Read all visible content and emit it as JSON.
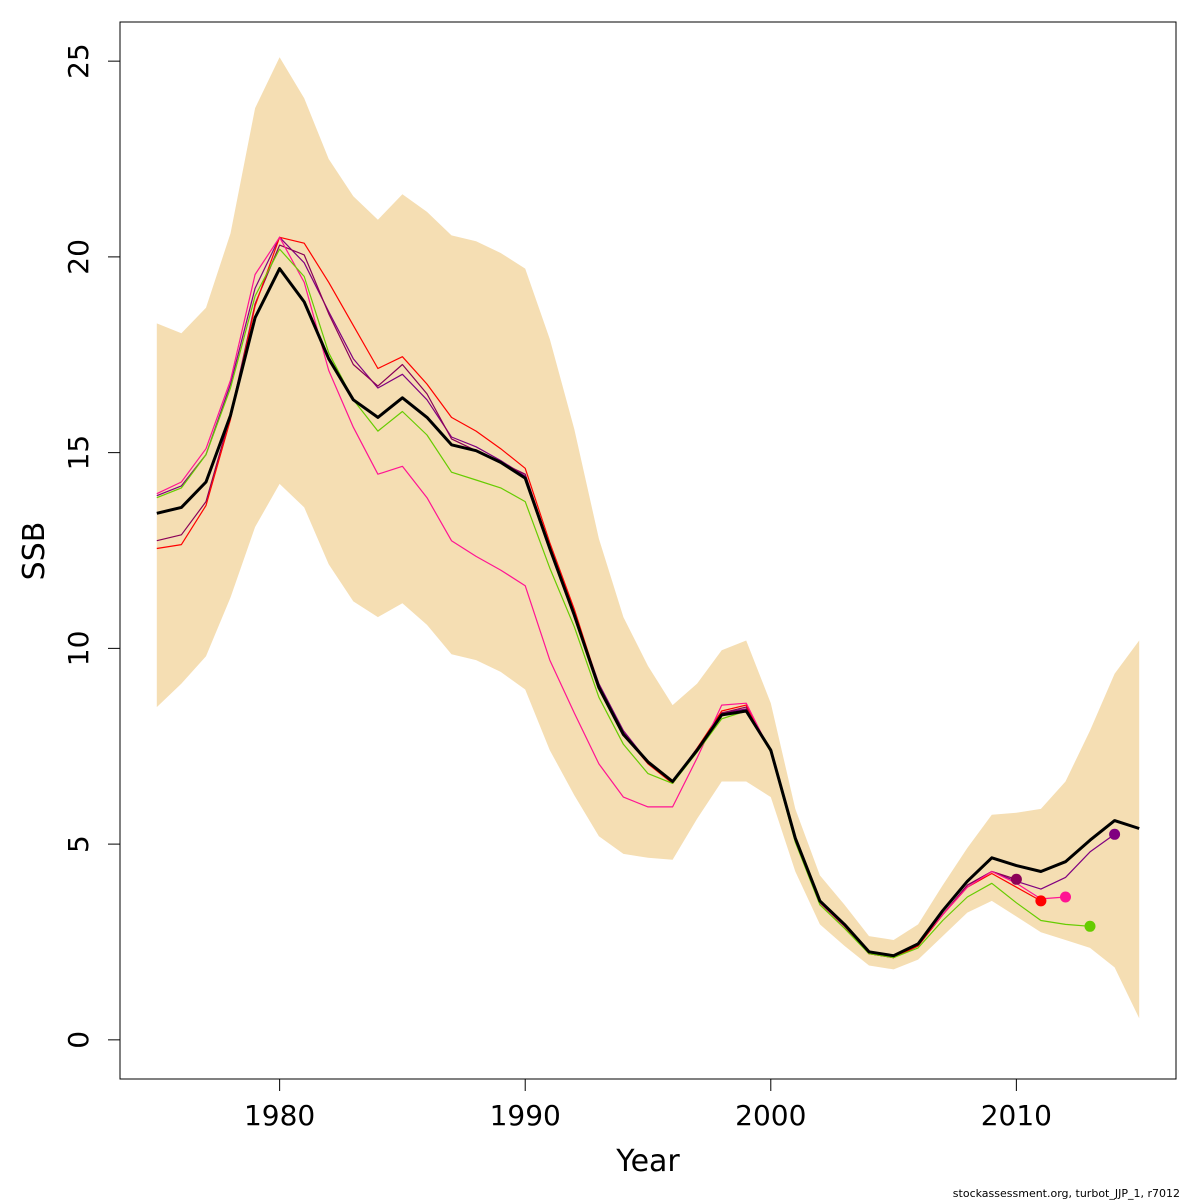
{
  "chart_data": {
    "type": "line",
    "title": "",
    "xlabel": "Year",
    "ylabel": "SSB",
    "xlim": [
      1973.5,
      2016.5
    ],
    "ylim": [
      -1,
      26
    ],
    "x_ticks": [
      1980,
      1990,
      2000,
      2010
    ],
    "y_ticks": [
      0,
      5,
      10,
      15,
      20,
      25
    ],
    "grid": false,
    "legend": "none",
    "credit": "stockassessment.org, turbot_JJP_1, r7012",
    "band": {
      "color": "#f5deb3",
      "x": [
        1975,
        1976,
        1977,
        1978,
        1979,
        1980,
        1981,
        1982,
        1983,
        1984,
        1985,
        1986,
        1987,
        1988,
        1989,
        1990,
        1991,
        1992,
        1993,
        1994,
        1995,
        1996,
        1997,
        1998,
        1999,
        2000,
        2001,
        2002,
        2003,
        2004,
        2005,
        2006,
        2007,
        2008,
        2009,
        2010,
        2011,
        2012,
        2013,
        2014,
        2015
      ],
      "upper": [
        18.3,
        18.05,
        18.7,
        20.6,
        23.8,
        25.1,
        24.05,
        22.5,
        21.55,
        20.95,
        21.6,
        21.15,
        20.55,
        20.4,
        20.1,
        19.7,
        17.9,
        15.6,
        12.8,
        10.8,
        9.55,
        8.55,
        9.1,
        9.95,
        10.2,
        8.6,
        5.9,
        4.2,
        3.45,
        2.65,
        2.55,
        2.95,
        3.95,
        4.9,
        5.75,
        5.8,
        5.9,
        6.6,
        7.9,
        9.35,
        10.2
      ],
      "lower": [
        8.5,
        9.1,
        9.8,
        11.3,
        13.1,
        14.2,
        13.6,
        12.15,
        11.2,
        10.8,
        11.15,
        10.6,
        9.85,
        9.7,
        9.4,
        8.95,
        7.4,
        6.25,
        5.2,
        4.75,
        4.65,
        4.6,
        5.65,
        6.6,
        6.6,
        6.2,
        4.3,
        2.95,
        2.4,
        1.9,
        1.8,
        2.05,
        2.65,
        3.25,
        3.55,
        3.15,
        2.75,
        2.55,
        2.35,
        1.85,
        0.55
      ]
    },
    "series": [
      {
        "color": "#000000",
        "main": true,
        "x": [
          1975,
          1976,
          1977,
          1978,
          1979,
          1980,
          1981,
          1982,
          1983,
          1984,
          1985,
          1986,
          1987,
          1988,
          1989,
          1990,
          1991,
          1992,
          1993,
          1994,
          1995,
          1996,
          1997,
          1998,
          1999,
          2000,
          2001,
          2002,
          2003,
          2004,
          2005,
          2006,
          2007,
          2008,
          2009,
          2010,
          2011,
          2012,
          2013,
          2014,
          2015
        ],
        "y": [
          13.45,
          13.6,
          14.25,
          15.95,
          18.45,
          19.7,
          18.85,
          17.4,
          16.35,
          15.9,
          16.4,
          15.9,
          15.2,
          15.05,
          14.75,
          14.35,
          12.55,
          10.85,
          9.0,
          7.8,
          7.1,
          6.6,
          7.4,
          8.3,
          8.4,
          7.4,
          5.15,
          3.55,
          2.95,
          2.25,
          2.15,
          2.45,
          3.3,
          4.05,
          4.65,
          4.45,
          4.3,
          4.55,
          5.1,
          5.6,
          5.4
        ],
        "end_marker": false
      },
      {
        "color": "#800080",
        "main": false,
        "x": [
          1975,
          1976,
          1977,
          1978,
          1979,
          1980,
          1981,
          1982,
          1983,
          1984,
          1985,
          1986,
          1987,
          1988,
          1989,
          1990,
          1991,
          1992,
          1993,
          1994,
          1995,
          1996,
          1997,
          1998,
          1999,
          2000,
          2001,
          2002,
          2003,
          2004,
          2005,
          2006,
          2007,
          2008,
          2009,
          2010,
          2011,
          2012,
          2013,
          2014
        ],
        "y": [
          13.9,
          14.15,
          14.95,
          16.75,
          19.2,
          20.5,
          19.85,
          18.6,
          17.4,
          16.65,
          17.0,
          16.35,
          15.4,
          15.15,
          14.8,
          14.4,
          12.55,
          10.9,
          9.1,
          7.9,
          7.1,
          6.6,
          7.45,
          8.35,
          8.45,
          7.4,
          5.15,
          3.55,
          2.95,
          2.25,
          2.15,
          2.45,
          3.2,
          3.95,
          4.3,
          4.05,
          3.85,
          4.15,
          4.8,
          5.25
        ],
        "end_marker": true
      },
      {
        "color": "#8b0057",
        "main": false,
        "x": [
          1975,
          1976,
          1977,
          1978,
          1979,
          1980,
          1981,
          1982,
          1983,
          1984,
          1985,
          1986,
          1987,
          1988,
          1989,
          1990,
          1991,
          1992,
          1993,
          1994,
          1995,
          1996,
          1997,
          1998,
          1999,
          2000,
          2001,
          2002,
          2003,
          2004,
          2005,
          2006,
          2007,
          2008,
          2009,
          2010
        ],
        "y": [
          12.75,
          12.9,
          13.75,
          15.95,
          18.8,
          20.3,
          20.05,
          18.55,
          17.25,
          16.7,
          17.25,
          16.5,
          15.35,
          15.05,
          14.75,
          14.45,
          12.6,
          10.95,
          9.05,
          7.85,
          7.1,
          6.55,
          7.45,
          8.35,
          8.5,
          7.35,
          5.1,
          3.5,
          2.9,
          2.2,
          2.1,
          2.4,
          3.2,
          3.95,
          4.3,
          4.1
        ],
        "end_marker": true
      },
      {
        "color": "#ff0000",
        "main": false,
        "x": [
          1975,
          1976,
          1977,
          1978,
          1979,
          1980,
          1981,
          1982,
          1983,
          1984,
          1985,
          1986,
          1987,
          1988,
          1989,
          1990,
          1991,
          1992,
          1993,
          1994,
          1995,
          1996,
          1997,
          1998,
          1999,
          2000,
          2001,
          2002,
          2003,
          2004,
          2005,
          2006,
          2007,
          2008,
          2009,
          2010,
          2011
        ],
        "y": [
          12.55,
          12.65,
          13.65,
          15.85,
          18.75,
          20.5,
          20.35,
          19.35,
          18.25,
          17.15,
          17.45,
          16.75,
          15.9,
          15.55,
          15.1,
          14.6,
          12.7,
          11.0,
          9.05,
          7.8,
          7.05,
          6.55,
          7.45,
          8.4,
          8.55,
          7.35,
          5.15,
          3.5,
          2.9,
          2.2,
          2.1,
          2.4,
          3.2,
          3.9,
          4.25,
          3.9,
          3.55
        ],
        "end_marker": true
      },
      {
        "color": "#ff1493",
        "main": false,
        "x": [
          1975,
          1976,
          1977,
          1978,
          1979,
          1980,
          1981,
          1982,
          1983,
          1984,
          1985,
          1986,
          1987,
          1988,
          1989,
          1990,
          1991,
          1992,
          1993,
          1994,
          1995,
          1996,
          1997,
          1998,
          1999,
          2000,
          2001,
          2002,
          2003,
          2004,
          2005,
          2006,
          2007,
          2008,
          2009,
          2010,
          2011,
          2012
        ],
        "y": [
          13.95,
          14.25,
          15.1,
          16.85,
          19.55,
          20.5,
          19.35,
          17.1,
          15.65,
          14.45,
          14.65,
          13.85,
          12.75,
          12.35,
          12.0,
          11.6,
          9.7,
          8.35,
          7.05,
          6.2,
          5.95,
          5.95,
          7.2,
          8.55,
          8.6,
          7.35,
          5.15,
          3.5,
          2.9,
          2.25,
          2.15,
          2.45,
          3.2,
          3.9,
          4.3,
          4.0,
          3.6,
          3.65
        ],
        "end_marker": true
      },
      {
        "color": "#66cc00",
        "main": false,
        "x": [
          1975,
          1976,
          1977,
          1978,
          1979,
          1980,
          1981,
          1982,
          1983,
          1984,
          1985,
          1986,
          1987,
          1988,
          1989,
          1990,
          1991,
          1992,
          1993,
          1994,
          1995,
          1996,
          1997,
          1998,
          1999,
          2000,
          2001,
          2002,
          2003,
          2004,
          2005,
          2006,
          2007,
          2008,
          2009,
          2010,
          2011,
          2012,
          2013
        ],
        "y": [
          13.85,
          14.1,
          14.95,
          16.65,
          19.0,
          20.2,
          19.5,
          17.55,
          16.35,
          15.55,
          16.05,
          15.45,
          14.5,
          14.3,
          14.1,
          13.75,
          12.05,
          10.55,
          8.75,
          7.55,
          6.8,
          6.55,
          7.35,
          8.2,
          8.4,
          7.35,
          5.05,
          3.45,
          2.85,
          2.2,
          2.1,
          2.35,
          3.05,
          3.65,
          4.0,
          3.5,
          3.05,
          2.95,
          2.9
        ],
        "end_marker": true
      }
    ]
  }
}
